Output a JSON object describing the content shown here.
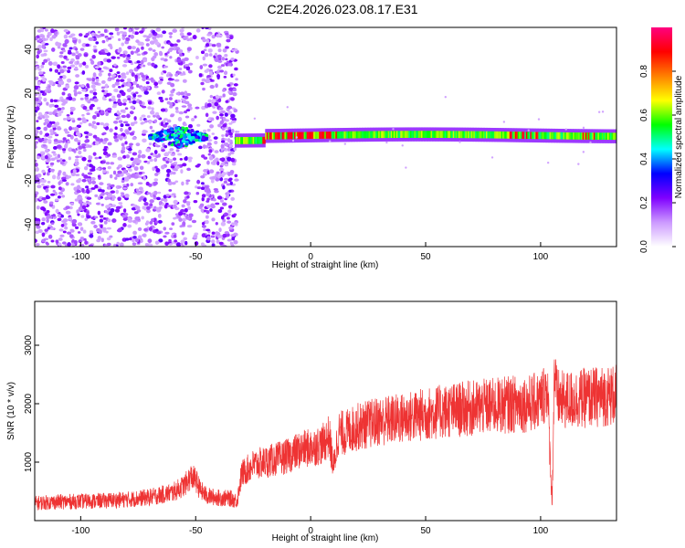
{
  "title": "C2E4.2026.023.08.17.E31",
  "chart_data": [
    {
      "type": "heatmap",
      "title": "",
      "xlabel": "Height of straight line (km)",
      "ylabel": "Frequency (Hz)",
      "xlim": [
        -120,
        133
      ],
      "ylim": [
        -50,
        50
      ],
      "xticks": [
        -100,
        -50,
        0,
        50,
        100
      ],
      "yticks": [
        -40,
        -20,
        0,
        20,
        40
      ],
      "colorbar": {
        "label": "Normalized spectral amplitude",
        "range": [
          0,
          1
        ],
        "ticks": [
          "0.0",
          "0.2",
          "0.4",
          "0.6",
          "0.8"
        ],
        "tick_values": [
          0.0,
          0.2,
          0.4,
          0.6,
          0.8
        ],
        "colormap": [
          "#ffffff",
          "#cc99ff",
          "#7f00ff",
          "#0000ff",
          "#00ffff",
          "#00ff00",
          "#ffff00",
          "#ff8000",
          "#ff0000",
          "#ff0080"
        ]
      },
      "description_points": [
        {
          "x_range": [
            -120,
            -33
          ],
          "pattern": "broadband noise",
          "amplitude": 0.15
        },
        {
          "x_range": [
            -65,
            -45
          ],
          "pattern": "cluster near 0 Hz",
          "amplitude": 0.45
        },
        {
          "x_range": [
            -33,
            133
          ],
          "pattern": "narrow band centered at ~0-2 Hz",
          "amplitude": 0.6
        },
        {
          "x_range": [
            -20,
            10
          ],
          "pattern": "hot spots",
          "amplitude": 0.9
        },
        {
          "x_range": [
            85,
            100
          ],
          "pattern": "hot spots",
          "amplitude": 0.9
        },
        {
          "x_range": [
            115,
            125
          ],
          "pattern": "hot spots",
          "amplitude": 0.9
        }
      ]
    },
    {
      "type": "line",
      "title": "",
      "xlabel": "Height of straight line (km)",
      "ylabel": "SNR (10 * v/v)",
      "xlim": [
        -120,
        133
      ],
      "ylim": [
        0,
        3750
      ],
      "xticks": [
        -100,
        -50,
        0,
        50,
        100
      ],
      "yticks": [
        1000,
        2000,
        3000
      ],
      "series": [
        {
          "color": "#ee3333",
          "x": [
            -120,
            -110,
            -100,
            -90,
            -80,
            -70,
            -60,
            -55,
            -52,
            -50,
            -48,
            -45,
            -40,
            -35,
            -32,
            -30,
            -25,
            -20,
            -15,
            -10,
            -5,
            0,
            5,
            8,
            10,
            12,
            15,
            20,
            30,
            40,
            50,
            60,
            70,
            80,
            90,
            95,
            100,
            103,
            104,
            105,
            106,
            107,
            110,
            120,
            133
          ],
          "y": [
            300,
            320,
            330,
            340,
            360,
            400,
            480,
            600,
            750,
            700,
            520,
            420,
            390,
            380,
            340,
            800,
            950,
            1000,
            1050,
            1100,
            1200,
            1250,
            1300,
            1450,
            900,
            1500,
            1500,
            1600,
            1700,
            1750,
            1820,
            1880,
            1920,
            1960,
            2000,
            2000,
            2050,
            2300,
            1200,
            300,
            2600,
            2100,
            2050,
            2100,
            2150
          ],
          "noise_band": 350
        }
      ]
    }
  ]
}
